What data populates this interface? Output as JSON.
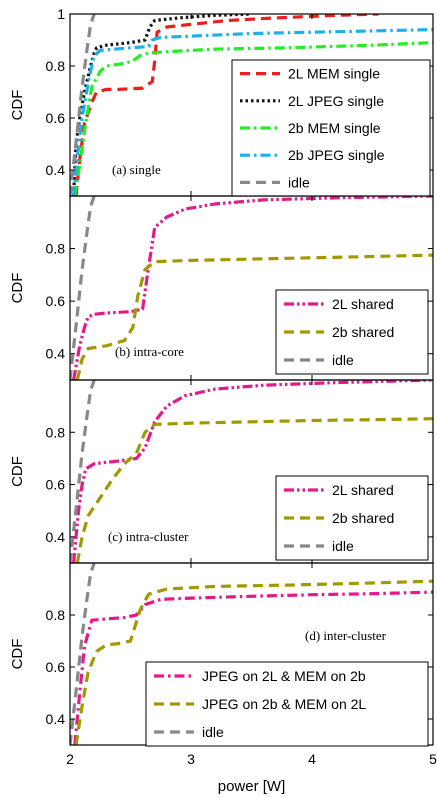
{
  "chart_data": [
    {
      "type": "line",
      "annotation": "(a) single",
      "ylabel": "CDF",
      "xlabel": "",
      "xlim": [
        2,
        5
      ],
      "ylim": [
        0.3,
        1.0
      ],
      "yticks": [
        0.4,
        0.6,
        0.8,
        1
      ],
      "ytick_labels": [
        "0.4",
        "0.6",
        "0.8",
        "1"
      ],
      "grid": false,
      "legend": "right",
      "series": [
        {
          "name": "2L MEM single",
          "color": "#ee1c1c",
          "dash": "dash",
          "x": [
            2.05,
            2.08,
            2.12,
            2.18,
            2.22,
            2.3,
            2.4,
            2.6,
            2.68,
            2.7,
            2.72,
            2.8,
            3.0,
            3.3,
            3.7,
            4.2,
            4.55
          ],
          "y": [
            0.3,
            0.44,
            0.58,
            0.66,
            0.7,
            0.71,
            0.71,
            0.715,
            0.74,
            0.82,
            0.93,
            0.95,
            0.96,
            0.975,
            0.985,
            0.995,
            1.0
          ]
        },
        {
          "name": "2L JPEG single",
          "color": "#111111",
          "dash": "dot",
          "x": [
            2.03,
            2.05,
            2.08,
            2.12,
            2.17,
            2.2,
            2.22,
            2.3,
            2.5,
            2.62,
            2.66,
            2.7,
            2.9,
            3.2,
            3.5
          ],
          "y": [
            0.3,
            0.5,
            0.6,
            0.7,
            0.8,
            0.85,
            0.87,
            0.88,
            0.89,
            0.9,
            0.95,
            0.975,
            0.985,
            0.995,
            1.0
          ]
        },
        {
          "name": "2b MEM single",
          "color": "#22ee22",
          "dash": "dashdot",
          "x": [
            2.04,
            2.08,
            2.13,
            2.18,
            2.25,
            2.3,
            2.45,
            2.52,
            2.58,
            2.65,
            2.8,
            3.2,
            3.8,
            4.5,
            5.0
          ],
          "y": [
            0.3,
            0.42,
            0.58,
            0.72,
            0.78,
            0.8,
            0.81,
            0.82,
            0.84,
            0.85,
            0.855,
            0.865,
            0.87,
            0.88,
            0.89
          ]
        },
        {
          "name": "2b JPEG single",
          "color": "#1ab2e8",
          "dash": "dashdot",
          "x": [
            2.03,
            2.06,
            2.1,
            2.16,
            2.2,
            2.25,
            2.5,
            2.65,
            2.68,
            2.75,
            3.0,
            3.5,
            4.0,
            4.5,
            5.0
          ],
          "y": [
            0.3,
            0.45,
            0.6,
            0.76,
            0.84,
            0.86,
            0.87,
            0.875,
            0.9,
            0.91,
            0.915,
            0.925,
            0.93,
            0.935,
            0.94
          ]
        },
        {
          "name": "idle",
          "color": "#888888",
          "dash": "dash",
          "x": [
            2.0,
            2.06,
            2.1,
            2.14,
            2.17,
            2.2
          ],
          "y": [
            0.3,
            0.55,
            0.72,
            0.86,
            0.96,
            1.0
          ]
        }
      ]
    },
    {
      "type": "line",
      "annotation": "(b) intra-core",
      "ylabel": "CDF",
      "xlabel": "",
      "xlim": [
        2,
        5
      ],
      "ylim": [
        0.3,
        1.0
      ],
      "yticks": [
        0.4,
        0.6,
        0.8
      ],
      "ytick_labels": [
        "0.4",
        "0.6",
        "0.8"
      ],
      "grid": false,
      "legend": "bottom-right",
      "series": [
        {
          "name": "2L shared",
          "color": "#e6198c",
          "dash": "dashdotdot",
          "x": [
            2.03,
            2.08,
            2.12,
            2.15,
            2.2,
            2.3,
            2.5,
            2.6,
            2.64,
            2.7,
            2.8,
            2.95,
            3.2,
            3.6,
            4.2,
            5.0
          ],
          "y": [
            0.3,
            0.43,
            0.5,
            0.54,
            0.55,
            0.555,
            0.56,
            0.57,
            0.7,
            0.88,
            0.92,
            0.95,
            0.97,
            0.985,
            0.993,
            1.0
          ]
        },
        {
          "name": "2b shared",
          "color": "#a09a00",
          "dash": "dash",
          "x": [
            2.06,
            2.1,
            2.15,
            2.3,
            2.45,
            2.52,
            2.56,
            2.62,
            2.7,
            3.0,
            3.5,
            4.0,
            4.5,
            5.0
          ],
          "y": [
            0.3,
            0.38,
            0.42,
            0.43,
            0.45,
            0.5,
            0.62,
            0.72,
            0.75,
            0.755,
            0.76,
            0.765,
            0.77,
            0.775
          ]
        },
        {
          "name": "idle",
          "color": "#888888",
          "dash": "dash",
          "x": [
            2.0,
            2.06,
            2.1,
            2.14,
            2.17,
            2.2
          ],
          "y": [
            0.3,
            0.55,
            0.72,
            0.86,
            0.96,
            1.0
          ]
        }
      ]
    },
    {
      "type": "line",
      "annotation": "(c) intra-cluster",
      "ylabel": "CDF",
      "xlabel": "",
      "xlim": [
        2,
        5
      ],
      "ylim": [
        0.3,
        1.0
      ],
      "yticks": [
        0.4,
        0.6,
        0.8
      ],
      "ytick_labels": [
        "0.4",
        "0.6",
        "0.8"
      ],
      "grid": false,
      "legend": "bottom-right",
      "series": [
        {
          "name": "2L shared",
          "color": "#e6198c",
          "dash": "dashdotdot",
          "x": [
            2.03,
            2.07,
            2.1,
            2.13,
            2.2,
            2.4,
            2.55,
            2.62,
            2.7,
            2.8,
            2.95,
            3.2,
            3.6,
            4.2,
            5.0
          ],
          "y": [
            0.3,
            0.5,
            0.6,
            0.66,
            0.68,
            0.69,
            0.7,
            0.74,
            0.84,
            0.9,
            0.94,
            0.965,
            0.98,
            0.99,
            1.0
          ]
        },
        {
          "name": "2b shared",
          "color": "#a09a00",
          "dash": "dash",
          "x": [
            2.06,
            2.1,
            2.15,
            2.25,
            2.35,
            2.45,
            2.55,
            2.62,
            2.7,
            3.0,
            3.5,
            4.0,
            4.5,
            5.0
          ],
          "y": [
            0.3,
            0.4,
            0.48,
            0.55,
            0.62,
            0.68,
            0.72,
            0.8,
            0.83,
            0.835,
            0.84,
            0.845,
            0.848,
            0.852
          ]
        },
        {
          "name": "idle",
          "color": "#888888",
          "dash": "dash",
          "x": [
            2.0,
            2.06,
            2.1,
            2.14,
            2.17,
            2.2
          ],
          "y": [
            0.3,
            0.55,
            0.72,
            0.86,
            0.96,
            1.0
          ]
        }
      ]
    },
    {
      "type": "line",
      "annotation": "(d) inter-cluster",
      "ylabel": "CDF",
      "xlabel": "power [W]",
      "xlim": [
        2,
        5
      ],
      "ylim": [
        0.3,
        1.0
      ],
      "xticks": [
        2,
        3,
        4,
        5
      ],
      "xtick_labels": [
        "2",
        "3",
        "4",
        "5"
      ],
      "yticks": [
        0.4,
        0.6,
        0.8
      ],
      "ytick_labels": [
        "0.4",
        "0.6",
        "0.8"
      ],
      "grid": false,
      "legend": "bottom-right",
      "series": [
        {
          "name": "JPEG on 2L & MEM on 2b",
          "color": "#e6198c",
          "dash": "dashdot",
          "x": [
            2.04,
            2.08,
            2.12,
            2.18,
            2.3,
            2.45,
            2.55,
            2.62,
            2.75,
            3.0,
            3.5,
            4.0,
            4.5,
            5.0
          ],
          "y": [
            0.3,
            0.5,
            0.68,
            0.78,
            0.785,
            0.79,
            0.8,
            0.84,
            0.86,
            0.865,
            0.872,
            0.878,
            0.882,
            0.888
          ]
        },
        {
          "name": "JPEG on 2b & MEM on 2L",
          "color": "#a09a00",
          "dash": "dash",
          "x": [
            2.05,
            2.1,
            2.15,
            2.22,
            2.3,
            2.4,
            2.5,
            2.58,
            2.65,
            2.8,
            3.2,
            3.8,
            4.4,
            5.0
          ],
          "y": [
            0.3,
            0.45,
            0.58,
            0.66,
            0.685,
            0.69,
            0.7,
            0.82,
            0.88,
            0.9,
            0.91,
            0.915,
            0.922,
            0.93
          ]
        },
        {
          "name": "idle",
          "color": "#888888",
          "dash": "dash",
          "x": [
            2.0,
            2.06,
            2.1,
            2.14,
            2.17,
            2.2
          ],
          "y": [
            0.3,
            0.55,
            0.72,
            0.86,
            0.96,
            1.0
          ]
        }
      ]
    }
  ]
}
